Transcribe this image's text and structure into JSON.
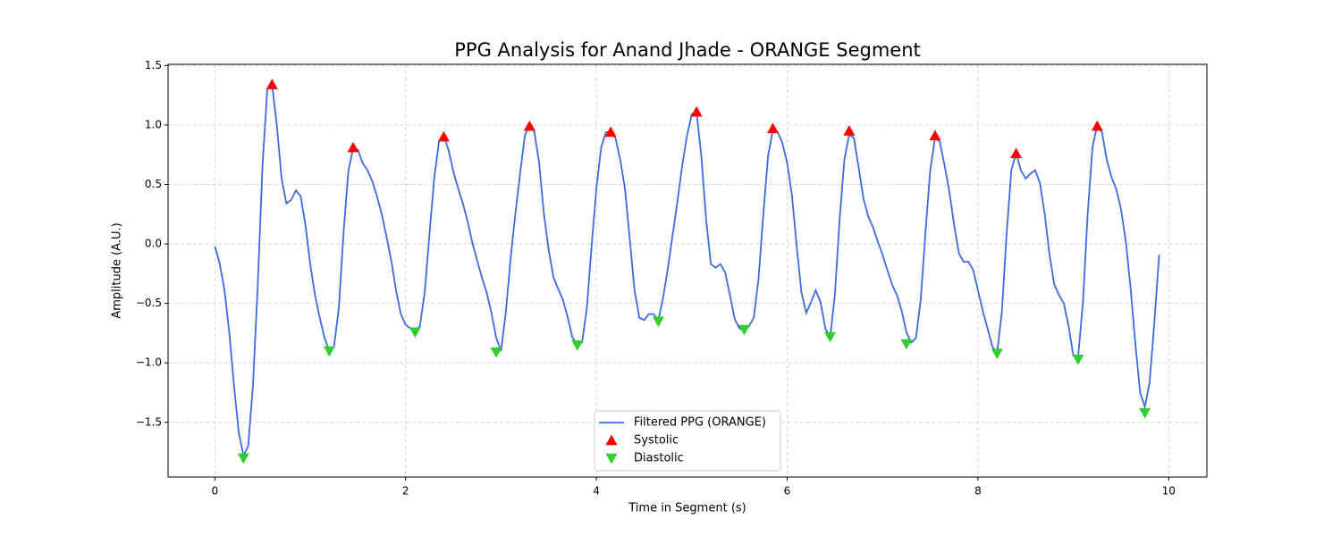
{
  "chart_data": {
    "type": "line",
    "title": "PPG Analysis for Anand Jhade - ORANGE Segment",
    "xlabel": "Time in Segment (s)",
    "ylabel": "Amplitude (A.U.)",
    "xlim": [
      -0.49,
      10.4
    ],
    "ylim": [
      -1.96,
      1.51
    ],
    "xticks": [
      0,
      2,
      4,
      6,
      8,
      10
    ],
    "yticks": [
      {
        "value": -1.5,
        "label": "−1.5"
      },
      {
        "value": -1.0,
        "label": "−1.0"
      },
      {
        "value": -0.5,
        "label": "−0.5"
      },
      {
        "value": 0,
        "label": "0.0"
      },
      0.5,
      {
        "value": 1.0,
        "label": "1.0"
      },
      1.5
    ],
    "grid": true,
    "legend": "lower center",
    "series": [
      {
        "name": "Filtered PPG (ORANGE)",
        "type": "line",
        "color": "#4169e1",
        "x": [
          0,
          0.05,
          0.1,
          0.15,
          0.2,
          0.25,
          0.3,
          0.35,
          0.4,
          0.45,
          0.5,
          0.55,
          0.6,
          0.65,
          0.7,
          0.75,
          0.8,
          0.85,
          0.9,
          0.95,
          1.0,
          1.05,
          1.1,
          1.15,
          1.2,
          1.25,
          1.3,
          1.35,
          1.4,
          1.45,
          1.5,
          1.55,
          1.6,
          1.65,
          1.7,
          1.75,
          1.8,
          1.85,
          1.9,
          1.95,
          2.0,
          2.05,
          2.1,
          2.15,
          2.2,
          2.25,
          2.3,
          2.35,
          2.4,
          2.45,
          2.5,
          2.55,
          2.6,
          2.65,
          2.7,
          2.75,
          2.8,
          2.85,
          2.9,
          2.95,
          3.0,
          3.05,
          3.1,
          3.15,
          3.2,
          3.25,
          3.3,
          3.35,
          3.4,
          3.45,
          3.5,
          3.55,
          3.6,
          3.65,
          3.7,
          3.75,
          3.8,
          3.85,
          3.9,
          3.95,
          4.0,
          4.05,
          4.1,
          4.15,
          4.2,
          4.25,
          4.3,
          4.35,
          4.4,
          4.45,
          4.5,
          4.55,
          4.6,
          4.65,
          4.7,
          4.75,
          4.8,
          4.85,
          4.9,
          4.95,
          5.0,
          5.05,
          5.1,
          5.15,
          5.2,
          5.25,
          5.3,
          5.35,
          5.4,
          5.45,
          5.5,
          5.55,
          5.6,
          5.65,
          5.7,
          5.75,
          5.8,
          5.85,
          5.9,
          5.95,
          6.0,
          6.05,
          6.1,
          6.15,
          6.2,
          6.25,
          6.3,
          6.35,
          6.4,
          6.45,
          6.5,
          6.55,
          6.6,
          6.65,
          6.7,
          6.75,
          6.8,
          6.85,
          6.9,
          6.95,
          7.0,
          7.05,
          7.1,
          7.15,
          7.2,
          7.25,
          7.3,
          7.35,
          7.4,
          7.45,
          7.5,
          7.55,
          7.6,
          7.65,
          7.7,
          7.75,
          7.8,
          7.85,
          7.9,
          7.95,
          8.0,
          8.05,
          8.1,
          8.15,
          8.2,
          8.25,
          8.3,
          8.35,
          8.4,
          8.45,
          8.5,
          8.55,
          8.6,
          8.65,
          8.7,
          8.75,
          8.8,
          8.85,
          8.9,
          8.95,
          9.0,
          9.05,
          9.1,
          9.15,
          9.2,
          9.25,
          9.3,
          9.35,
          9.4,
          9.45,
          9.5,
          9.55,
          9.6,
          9.65,
          9.7,
          9.75,
          9.8,
          9.85,
          9.9
        ],
        "values": [
          -0.02,
          -0.16,
          -0.38,
          -0.73,
          -1.18,
          -1.58,
          -1.78,
          -1.7,
          -1.19,
          -0.35,
          0.66,
          1.3,
          1.34,
          1.0,
          0.55,
          0.34,
          0.37,
          0.45,
          0.4,
          0.16,
          -0.17,
          -0.43,
          -0.62,
          -0.79,
          -0.9,
          -0.86,
          -0.54,
          0.1,
          0.61,
          0.81,
          0.79,
          0.68,
          0.62,
          0.53,
          0.4,
          0.25,
          0.06,
          -0.14,
          -0.39,
          -0.59,
          -0.68,
          -0.71,
          -0.74,
          -0.69,
          -0.41,
          0.08,
          0.55,
          0.86,
          0.91,
          0.79,
          0.61,
          0.47,
          0.34,
          0.19,
          0.01,
          -0.14,
          -0.28,
          -0.41,
          -0.58,
          -0.79,
          -0.9,
          -0.58,
          -0.13,
          0.25,
          0.59,
          0.91,
          1.0,
          0.94,
          0.68,
          0.25,
          -0.05,
          -0.28,
          -0.38,
          -0.47,
          -0.62,
          -0.79,
          -0.84,
          -0.83,
          -0.54,
          -0.02,
          0.47,
          0.81,
          0.94,
          0.94,
          0.89,
          0.71,
          0.46,
          0.04,
          -0.39,
          -0.62,
          -0.64,
          -0.59,
          -0.59,
          -0.64,
          -0.45,
          -0.2,
          0.08,
          0.36,
          0.66,
          0.91,
          1.09,
          1.11,
          0.74,
          0.21,
          -0.17,
          -0.2,
          -0.17,
          -0.24,
          -0.43,
          -0.63,
          -0.71,
          -0.73,
          -0.69,
          -0.62,
          -0.29,
          0.25,
          0.74,
          0.96,
          0.94,
          0.85,
          0.68,
          0.41,
          -0.02,
          -0.41,
          -0.58,
          -0.49,
          -0.39,
          -0.49,
          -0.71,
          -0.79,
          -0.43,
          0.21,
          0.71,
          0.92,
          0.89,
          0.64,
          0.38,
          0.23,
          0.14,
          0.02,
          -0.09,
          -0.22,
          -0.34,
          -0.43,
          -0.56,
          -0.74,
          -0.83,
          -0.79,
          -0.47,
          0.1,
          0.62,
          0.89,
          0.86,
          0.66,
          0.44,
          0.16,
          -0.08,
          -0.15,
          -0.15,
          -0.22,
          -0.39,
          -0.56,
          -0.71,
          -0.86,
          -0.92,
          -0.58,
          0.08,
          0.62,
          0.76,
          0.62,
          0.55,
          0.59,
          0.62,
          0.51,
          0.25,
          -0.09,
          -0.34,
          -0.43,
          -0.5,
          -0.69,
          -0.94,
          -0.95,
          -0.5,
          0.25,
          0.81,
          1.0,
          0.94,
          0.71,
          0.56,
          0.46,
          0.29,
          0.02,
          -0.37,
          -0.84,
          -1.25,
          -1.37,
          -1.16,
          -0.65,
          -0.09
        ]
      },
      {
        "name": "Systolic",
        "type": "scatter",
        "marker": "triangle-up",
        "color": "#ff0000",
        "x": [
          0.6,
          1.45,
          2.4,
          3.3,
          4.15,
          5.05,
          5.85,
          6.65,
          7.55,
          8.4,
          9.25
        ],
        "values": [
          1.34,
          0.81,
          0.9,
          0.99,
          0.94,
          1.11,
          0.97,
          0.95,
          0.91,
          0.76,
          0.99
        ]
      },
      {
        "name": "Diastolic",
        "type": "scatter",
        "marker": "triangle-down",
        "color": "#32cd32",
        "x": [
          0.3,
          1.2,
          2.1,
          2.95,
          3.8,
          4.65,
          5.55,
          6.45,
          7.25,
          8.2,
          9.05,
          9.75
        ],
        "values": [
          -1.8,
          -0.9,
          -0.74,
          -0.91,
          -0.85,
          -0.65,
          -0.72,
          -0.78,
          -0.84,
          -0.92,
          -0.97,
          -1.42
        ]
      }
    ]
  }
}
